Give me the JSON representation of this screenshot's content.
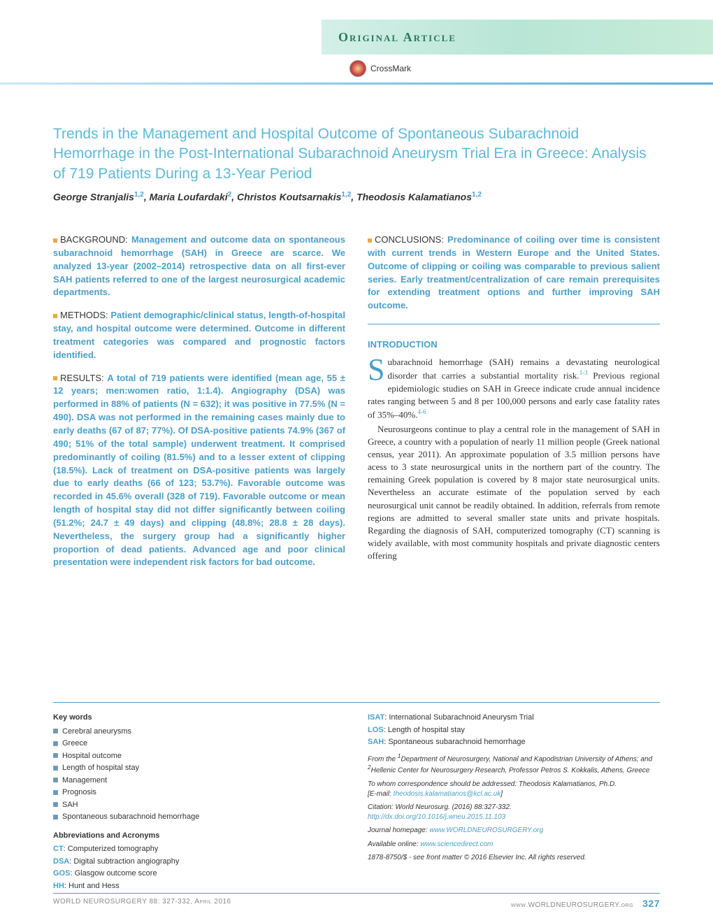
{
  "header": {
    "banner_label": "Original Article",
    "crossmark_label": "CrossMark"
  },
  "title": "Trends in the Management and Hospital Outcome of Spontaneous Subarachnoid Hemorrhage in the Post-International Subarachnoid Aneurysm Trial Era in Greece: Analysis of 719 Patients During a 13-Year Period",
  "authors": [
    {
      "name": "George Stranjalis",
      "aff": "1,2"
    },
    {
      "name": "Maria Loufardaki",
      "aff": "2"
    },
    {
      "name": "Christos Koutsarnakis",
      "aff": "1,2"
    },
    {
      "name": "Theodosis Kalamatianos",
      "aff": "1,2"
    }
  ],
  "abstract": {
    "background": {
      "label": "BACKGROUND:",
      "text": "Management and outcome data on spontaneous subarachnoid hemorrhage (SAH) in Greece are scarce. We analyzed 13-year (2002–2014) retrospective data on all first-ever SAH patients referred to one of the largest neurosurgical academic departments."
    },
    "methods": {
      "label": "METHODS:",
      "text": "Patient demographic/clinical status, length-of-hospital stay, and hospital outcome were determined. Outcome in different treatment categories was compared and prognostic factors identified."
    },
    "results": {
      "label": "RESULTS:",
      "text": "A total of 719 patients were identified (mean age, 55 ± 12 years; men:women ratio, 1:1.4). Angiography (DSA) was performed in 88% of patients (N = 632); it was positive in 77.5% (N = 490). DSA was not performed in the remaining cases mainly due to early deaths (67 of 87; 77%). Of DSA-positive patients 74.9% (367 of 490; 51% of the total sample) underwent treatment. It comprised predominantly of coiling (81.5%) and to a lesser extent of clipping (18.5%). Lack of treatment on DSA-positive patients was largely due to early deaths (66 of 123; 53.7%). Favorable outcome was recorded in 45.6% overall (328 of 719). Favorable outcome or mean length of hospital stay did not differ significantly between coiling (51.2%; 24.7 ± 49 days) and clipping (48.8%; 28.8 ± 28 days). Nevertheless, the surgery group had a significantly higher proportion of dead patients. Advanced age and poor clinical presentation were independent risk factors for bad outcome."
    },
    "conclusions": {
      "label": "CONCLUSIONS:",
      "text": "Predominance of coiling over time is consistent with current trends in Western Europe and the United States. Outcome of clipping or coiling was comparable to previous salient series. Early treatment/centralization of care remain prerequisites for extending treatment options and further improving SAH outcome."
    }
  },
  "introduction": {
    "heading": "INTRODUCTION",
    "para1_dropcap": "S",
    "para1": "ubarachnoid hemorrhage (SAH) remains a devastating neurological disorder that carries a substantial mortality risk.",
    "para1_ref1": "1-3",
    "para1_cont": " Previous regional epidemiologic studies on SAH in Greece indicate crude annual incidence rates ranging between 5 and 8 per 100,000 persons and early case fatality rates of 35%–40%.",
    "para1_ref2": "4-6",
    "para2": "Neurosurgeons continue to play a central role in the management of SAH in Greece, a country with a population of nearly 11 million people (Greek national census, year 2011). An approximate population of 3.5 million persons have acess to 3 state neurosurgical units in the northern part of the country. The remaining Greek population is covered by 8 major state neurosurgical units. Nevertheless an accurate estimate of the population served by each neurosurgical unit cannot be readily obtained. In addition, referrals from remote regions are admitted to several smaller state units and private hospitals. Regarding the diagnosis of SAH, computerized tomography (CT) scanning is widely available, with most community hospitals and private diagnostic centers offering"
  },
  "keywords": {
    "heading": "Key words",
    "items": [
      "Cerebral aneurysms",
      "Greece",
      "Hospital outcome",
      "Length of hospital stay",
      "Management",
      "Prognosis",
      "SAH",
      "Spontaneous subarachnoid hemorrhage"
    ],
    "colors": [
      "#5a9dd0",
      "#5a9dd0",
      "#5a9dd0",
      "#5a9dd0",
      "#5a9dd0",
      "#5a9dd0",
      "#5a9dd0",
      "#5a9dd0"
    ]
  },
  "abbreviations": {
    "heading": "Abbreviations and Acronyms",
    "left": [
      {
        "key": "CT",
        "val": ": Computerized tomography"
      },
      {
        "key": "DSA",
        "val": ": Digital subtraction angiography"
      },
      {
        "key": "GOS",
        "val": ": Glasgow outcome score"
      },
      {
        "key": "HH",
        "val": ": Hunt and Hess"
      }
    ],
    "right": [
      {
        "key": "ISAT",
        "val": ": International Subarachnoid Aneurysm Trial"
      },
      {
        "key": "LOS",
        "val": ": Length of hospital stay"
      },
      {
        "key": "SAH",
        "val": ": Spontaneous subarachnoid hemorrhage"
      }
    ]
  },
  "affiliations": {
    "from": "From the ",
    "aff1_num": "1",
    "aff1": "Department of Neurosurgery, National and Kapodistrian University of Athens; and ",
    "aff2_num": "2",
    "aff2": "Hellenic Center for Neurosurgery Research, Professor Petros S. Kokkalis, Athens, Greece",
    "correspond": "To whom correspondence should be addressed: Theodosis Kalamatianos, Ph.D.",
    "email_label": "[E-mail: ",
    "email": "theodosis.kalamatianos@kcl.ac.uk",
    "email_close": "]",
    "citation": "Citation: World Neurosurg. (2016) 88:327-332.",
    "doi": "http://dx.doi.org/10.1016/j.wneu.2015.11.103",
    "homepage_label": "Journal homepage: ",
    "homepage": "www.WORLDNEUROSURGERY.org",
    "available_label": "Available online: ",
    "available": "www.sciencedirect.com",
    "copyright": "1878-8750/$ - see front matter © 2016 Elsevier Inc. All rights reserved."
  },
  "footer": {
    "left": "WORLD NEUROSURGERY 88: 327-332, April 2016",
    "right_url": "www.WORLDNEUROSURGERY.org",
    "page": "327"
  },
  "colors": {
    "accent_blue": "#4a9fc8",
    "title_blue": "#5fb8d8",
    "bullet_orange": "#e8a848",
    "banner_green": "#2a7a5a"
  }
}
